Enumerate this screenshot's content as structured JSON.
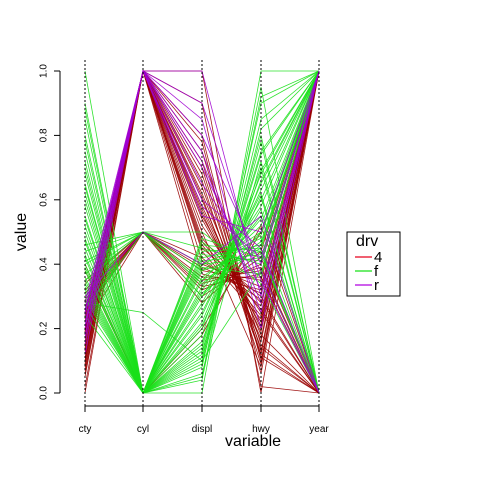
{
  "chart_data": {
    "type": "parallel_coordinates",
    "xlabel": "variable",
    "ylabel": "value",
    "categories": [
      "cty",
      "cyl",
      "displ",
      "hwy",
      "year"
    ],
    "ylim": [
      0,
      1
    ],
    "yticks": [
      "0.0",
      "0.2",
      "0.4",
      "0.6",
      "0.8",
      "1.0"
    ],
    "ytick_values": [
      0,
      0.2,
      0.4,
      0.6,
      0.8,
      1.0
    ],
    "grid": false,
    "legend": {
      "title": "drv",
      "placement": "right",
      "entries": [
        {
          "label": "4",
          "color": "#e8001c"
        },
        {
          "label": "f",
          "color": "#18e018"
        },
        {
          "label": "r",
          "color": "#b000e0"
        }
      ]
    },
    "series": [
      {
        "name": "4",
        "color": "#990000",
        "lines": [
          [
            0.05,
            1.0,
            0.8,
            0.1,
            1.0
          ],
          [
            0.1,
            1.0,
            0.75,
            0.15,
            0.0
          ],
          [
            0.12,
            1.0,
            0.68,
            0.12,
            1.0
          ],
          [
            0.15,
            1.0,
            0.62,
            0.18,
            0.0
          ],
          [
            0.08,
            1.0,
            0.58,
            0.2,
            1.0
          ],
          [
            0.18,
            1.0,
            0.55,
            0.22,
            1.0
          ],
          [
            0.2,
            1.0,
            0.52,
            0.25,
            0.0
          ],
          [
            0.14,
            1.0,
            0.5,
            0.08,
            1.0
          ],
          [
            0.22,
            1.0,
            0.48,
            0.28,
            1.0
          ],
          [
            0.25,
            1.0,
            0.45,
            0.3,
            0.0
          ],
          [
            0.16,
            1.0,
            0.6,
            0.16,
            1.0
          ],
          [
            0.11,
            1.0,
            0.7,
            0.11,
            0.0
          ],
          [
            0.06,
            1.0,
            0.78,
            0.06,
            1.0
          ],
          [
            0.19,
            1.0,
            0.57,
            0.19,
            1.0
          ],
          [
            0.13,
            1.0,
            0.64,
            0.14,
            0.0
          ],
          [
            0.24,
            1.0,
            0.46,
            0.24,
            1.0
          ],
          [
            0.28,
            0.5,
            0.38,
            0.35,
            1.0
          ],
          [
            0.3,
            0.5,
            0.35,
            0.38,
            0.0
          ],
          [
            0.32,
            0.5,
            0.32,
            0.4,
            1.0
          ],
          [
            0.26,
            0.5,
            0.4,
            0.33,
            1.0
          ],
          [
            0.35,
            0.5,
            0.3,
            0.42,
            0.0
          ],
          [
            0.21,
            0.5,
            0.42,
            0.27,
            1.0
          ],
          [
            0.34,
            0.5,
            0.28,
            0.44,
            1.0
          ],
          [
            0.29,
            0.5,
            0.36,
            0.36,
            0.0
          ],
          [
            0.38,
            0.0,
            0.2,
            0.5,
            1.0
          ],
          [
            0.4,
            0.0,
            0.18,
            0.52,
            0.0
          ],
          [
            0.0,
            1.0,
            1.0,
            0.0,
            1.0
          ],
          [
            0.02,
            1.0,
            0.9,
            0.02,
            0.0
          ],
          [
            0.17,
            1.0,
            0.54,
            0.21,
            1.0
          ],
          [
            0.23,
            1.0,
            0.47,
            0.26,
            0.0
          ],
          [
            0.09,
            1.0,
            0.72,
            0.13,
            1.0
          ],
          [
            0.27,
            0.5,
            0.39,
            0.31,
            1.0
          ],
          [
            0.31,
            0.5,
            0.34,
            0.39,
            0.0
          ],
          [
            0.07,
            1.0,
            0.66,
            0.09,
            1.0
          ],
          [
            0.15,
            1.0,
            0.44,
            0.23,
            1.0
          ],
          [
            0.19,
            1.0,
            0.41,
            0.29,
            0.0
          ],
          [
            0.12,
            1.0,
            0.56,
            0.17,
            1.0
          ],
          [
            0.22,
            1.0,
            0.37,
            0.32,
            1.0
          ],
          [
            0.1,
            1.0,
            0.61,
            0.12,
            0.0
          ],
          [
            0.25,
            0.5,
            0.33,
            0.37,
            1.0
          ]
        ]
      },
      {
        "name": "f",
        "color": "#18e018",
        "lines": [
          [
            1.0,
            0.0,
            0.0,
            1.0,
            1.0
          ],
          [
            0.9,
            0.0,
            0.05,
            0.95,
            0.0
          ],
          [
            0.85,
            0.0,
            0.08,
            0.9,
            1.0
          ],
          [
            0.8,
            0.0,
            0.1,
            0.85,
            1.0
          ],
          [
            0.75,
            0.0,
            0.12,
            0.8,
            0.0
          ],
          [
            0.7,
            0.0,
            0.15,
            0.75,
            1.0
          ],
          [
            0.65,
            0.0,
            0.18,
            0.7,
            0.0
          ],
          [
            0.6,
            0.0,
            0.2,
            0.68,
            1.0
          ],
          [
            0.55,
            0.0,
            0.22,
            0.65,
            1.0
          ],
          [
            0.5,
            0.0,
            0.25,
            0.62,
            0.0
          ],
          [
            0.48,
            0.0,
            0.28,
            0.6,
            1.0
          ],
          [
            0.45,
            0.0,
            0.3,
            0.58,
            1.0
          ],
          [
            0.42,
            0.0,
            0.32,
            0.55,
            0.0
          ],
          [
            0.4,
            0.0,
            0.35,
            0.52,
            1.0
          ],
          [
            0.38,
            0.0,
            0.38,
            0.5,
            1.0
          ],
          [
            0.36,
            0.0,
            0.4,
            0.48,
            0.0
          ],
          [
            0.34,
            0.0,
            0.42,
            0.46,
            1.0
          ],
          [
            0.33,
            0.0,
            0.44,
            0.45,
            1.0
          ],
          [
            0.32,
            0.0,
            0.46,
            0.44,
            0.0
          ],
          [
            0.3,
            0.0,
            0.48,
            0.42,
            1.0
          ],
          [
            0.44,
            0.5,
            0.3,
            0.5,
            1.0
          ],
          [
            0.4,
            0.5,
            0.35,
            0.45,
            0.0
          ],
          [
            0.37,
            0.5,
            0.4,
            0.42,
            1.0
          ],
          [
            0.35,
            0.5,
            0.45,
            0.4,
            1.0
          ],
          [
            0.28,
            0.25,
            0.1,
            0.38,
            0.0
          ],
          [
            0.26,
            0.5,
            0.5,
            0.36,
            1.0
          ],
          [
            0.62,
            0.0,
            0.06,
            0.72,
            0.0
          ],
          [
            0.58,
            0.0,
            0.16,
            0.66,
            1.0
          ],
          [
            0.52,
            0.0,
            0.24,
            0.63,
            1.0
          ],
          [
            0.47,
            0.0,
            0.27,
            0.57,
            0.0
          ],
          [
            0.43,
            0.0,
            0.33,
            0.54,
            1.0
          ],
          [
            0.39,
            0.0,
            0.36,
            0.49,
            1.0
          ],
          [
            0.31,
            0.0,
            0.41,
            0.43,
            0.0
          ],
          [
            0.29,
            0.0,
            0.43,
            0.41,
            1.0
          ],
          [
            0.46,
            0.5,
            0.34,
            0.47,
            1.0
          ],
          [
            0.41,
            0.5,
            0.38,
            0.44,
            0.0
          ],
          [
            0.68,
            0.0,
            0.14,
            0.74,
            1.0
          ],
          [
            0.72,
            0.0,
            0.11,
            0.78,
            0.0
          ],
          [
            0.78,
            0.0,
            0.09,
            0.82,
            1.0
          ],
          [
            0.88,
            0.0,
            0.04,
            0.92,
            1.0
          ],
          [
            0.24,
            0.0,
            0.47,
            0.34,
            0.0
          ],
          [
            0.27,
            0.0,
            0.39,
            0.37,
            1.0
          ],
          [
            0.35,
            0.0,
            0.31,
            0.46,
            1.0
          ],
          [
            0.54,
            0.0,
            0.21,
            0.61,
            0.0
          ],
          [
            0.64,
            0.0,
            0.13,
            0.69,
            1.0
          ]
        ]
      },
      {
        "name": "r",
        "color": "#a000d0",
        "lines": [
          [
            0.15,
            1.0,
            1.0,
            0.3,
            1.0
          ],
          [
            0.18,
            1.0,
            0.9,
            0.35,
            0.0
          ],
          [
            0.2,
            1.0,
            0.8,
            0.4,
            1.0
          ],
          [
            0.22,
            1.0,
            0.7,
            0.32,
            1.0
          ],
          [
            0.25,
            1.0,
            0.6,
            0.45,
            0.0
          ],
          [
            0.28,
            1.0,
            0.55,
            0.5,
            1.0
          ],
          [
            0.12,
            1.0,
            0.85,
            0.2,
            1.0
          ],
          [
            0.3,
            0.5,
            0.4,
            0.55,
            0.0
          ],
          [
            0.17,
            1.0,
            0.75,
            0.25,
            1.0
          ],
          [
            0.24,
            1.0,
            0.65,
            0.38,
            0.0
          ],
          [
            0.26,
            1.0,
            0.58,
            0.42,
            1.0
          ],
          [
            0.21,
            1.0,
            0.72,
            0.28,
            1.0
          ]
        ]
      }
    ]
  }
}
